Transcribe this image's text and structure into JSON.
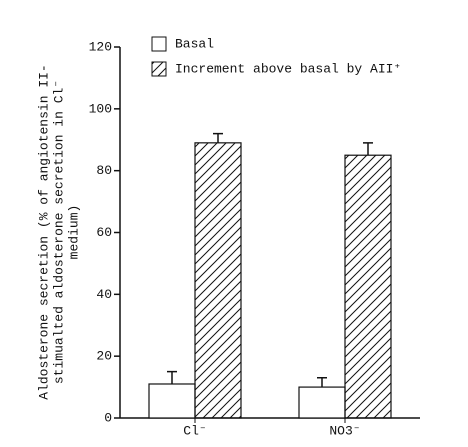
{
  "chart_data": {
    "type": "bar",
    "y_label": [
      "Aldosterone secretion (% of angiotensin II-",
      "stimualted aldosterone secretion in Cl⁻",
      "medium)"
    ],
    "categories": [
      "Cl⁻",
      "NO3⁻"
    ],
    "series": [
      {
        "name": "Basal",
        "color": "#ffffff",
        "hatch": false,
        "values": [
          11,
          10
        ],
        "errors": [
          4,
          3
        ]
      },
      {
        "name": "Increment above basal by AII⁺",
        "color": "#ffffff",
        "hatch": true,
        "values": [
          89,
          85
        ],
        "errors": [
          3,
          4
        ]
      }
    ],
    "ylim": [
      0,
      120
    ],
    "yticks": [
      0,
      20,
      40,
      60,
      80,
      100,
      120
    ]
  }
}
